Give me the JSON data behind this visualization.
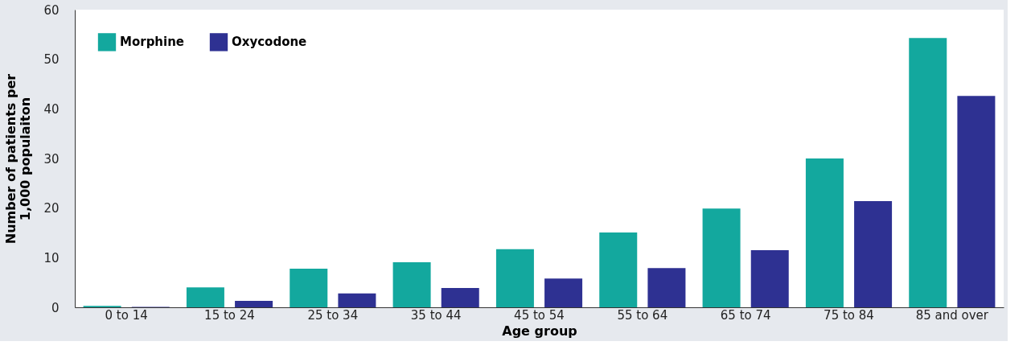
{
  "chart_data": {
    "type": "bar",
    "xlabel": "Age group",
    "ylabel": "Number of patients per\n1,000 populaiton",
    "categories": [
      "0 to 14",
      "15 to 24",
      "25 to 34",
      "35 to 44",
      "45 to 54",
      "55 to 64",
      "65 to 74",
      "75 to 84",
      "85 and over"
    ],
    "series": [
      {
        "name": "Morphine",
        "color": "#13a89e",
        "values": [
          0.3,
          4,
          7.8,
          9.1,
          11.7,
          15.1,
          19.9,
          30,
          54.3
        ]
      },
      {
        "name": "Oxycodone",
        "color": "#2e3192",
        "values": [
          0.1,
          1.3,
          2.8,
          3.9,
          5.8,
          7.9,
          11.5,
          21.4,
          42.6
        ]
      }
    ],
    "ylim": [
      0,
      60
    ],
    "yticks": [
      0,
      10,
      20,
      30,
      40,
      50,
      60
    ],
    "grid": false,
    "legend": "top left"
  }
}
